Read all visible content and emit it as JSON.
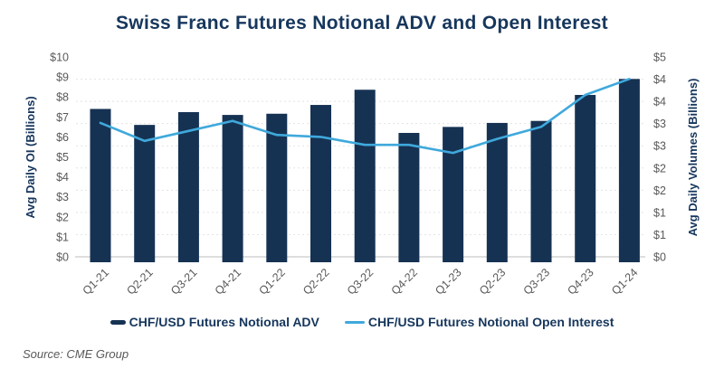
{
  "source": "Source: CME Group",
  "colors": {
    "navy_text": "#16365c",
    "bar_fill": "#163253",
    "line_blue": "#3fa9dc",
    "tick_gray": "#595959",
    "grid_line": "#e4e4e4",
    "axis_line": "#c9c9c9",
    "background": "#ffffff"
  },
  "legend": {
    "bar_swatch": "navy-dash-swatch",
    "line_swatch": "blue-line-swatch"
  },
  "chart_data": {
    "type": "bar",
    "subtype": "bar+line combo, dual axis",
    "title": "Swiss Franc Futures Notional ADV and Open Interest",
    "categories": [
      "Q1-21",
      "Q2-21",
      "Q3-21",
      "Q4-21",
      "Q1-22",
      "Q2-22",
      "Q3-22",
      "Q4-22",
      "Q1-23",
      "Q2-23",
      "Q3-23",
      "Q4-23",
      "Q1-24"
    ],
    "series": [
      {
        "name": "CHF/USD Futures Notional ADV",
        "render": "bar",
        "axis": "right",
        "values": [
          3.7,
          3.3,
          3.62,
          3.55,
          3.58,
          3.8,
          4.18,
          3.1,
          3.25,
          3.35,
          3.4,
          4.05,
          4.45
        ]
      },
      {
        "name": "CHF/USD Futures Notional Open Interest",
        "render": "line",
        "axis": "left",
        "values": [
          6.7,
          5.8,
          6.3,
          6.8,
          6.1,
          6.0,
          5.6,
          5.6,
          5.2,
          5.9,
          6.5,
          8.1,
          8.9
        ]
      }
    ],
    "left_axis": {
      "label": "Avg Daily OI (Billions)",
      "range": [
        0,
        10
      ],
      "tick_labels": [
        "$10",
        "$9",
        "$8",
        "$7",
        "$6",
        "$5",
        "$4",
        "$3",
        "$2",
        "$1",
        "$0"
      ]
    },
    "right_axis": {
      "label": "Avg Daily Volumes (Billions)",
      "range": [
        0,
        5
      ],
      "tick_labels": [
        "$5",
        "$4",
        "$4",
        "$3",
        "$3",
        "$2",
        "$2",
        "$1",
        "$1",
        "$0"
      ]
    },
    "grid": "faint dotted horizontal lines",
    "legend_position": "bottom"
  }
}
